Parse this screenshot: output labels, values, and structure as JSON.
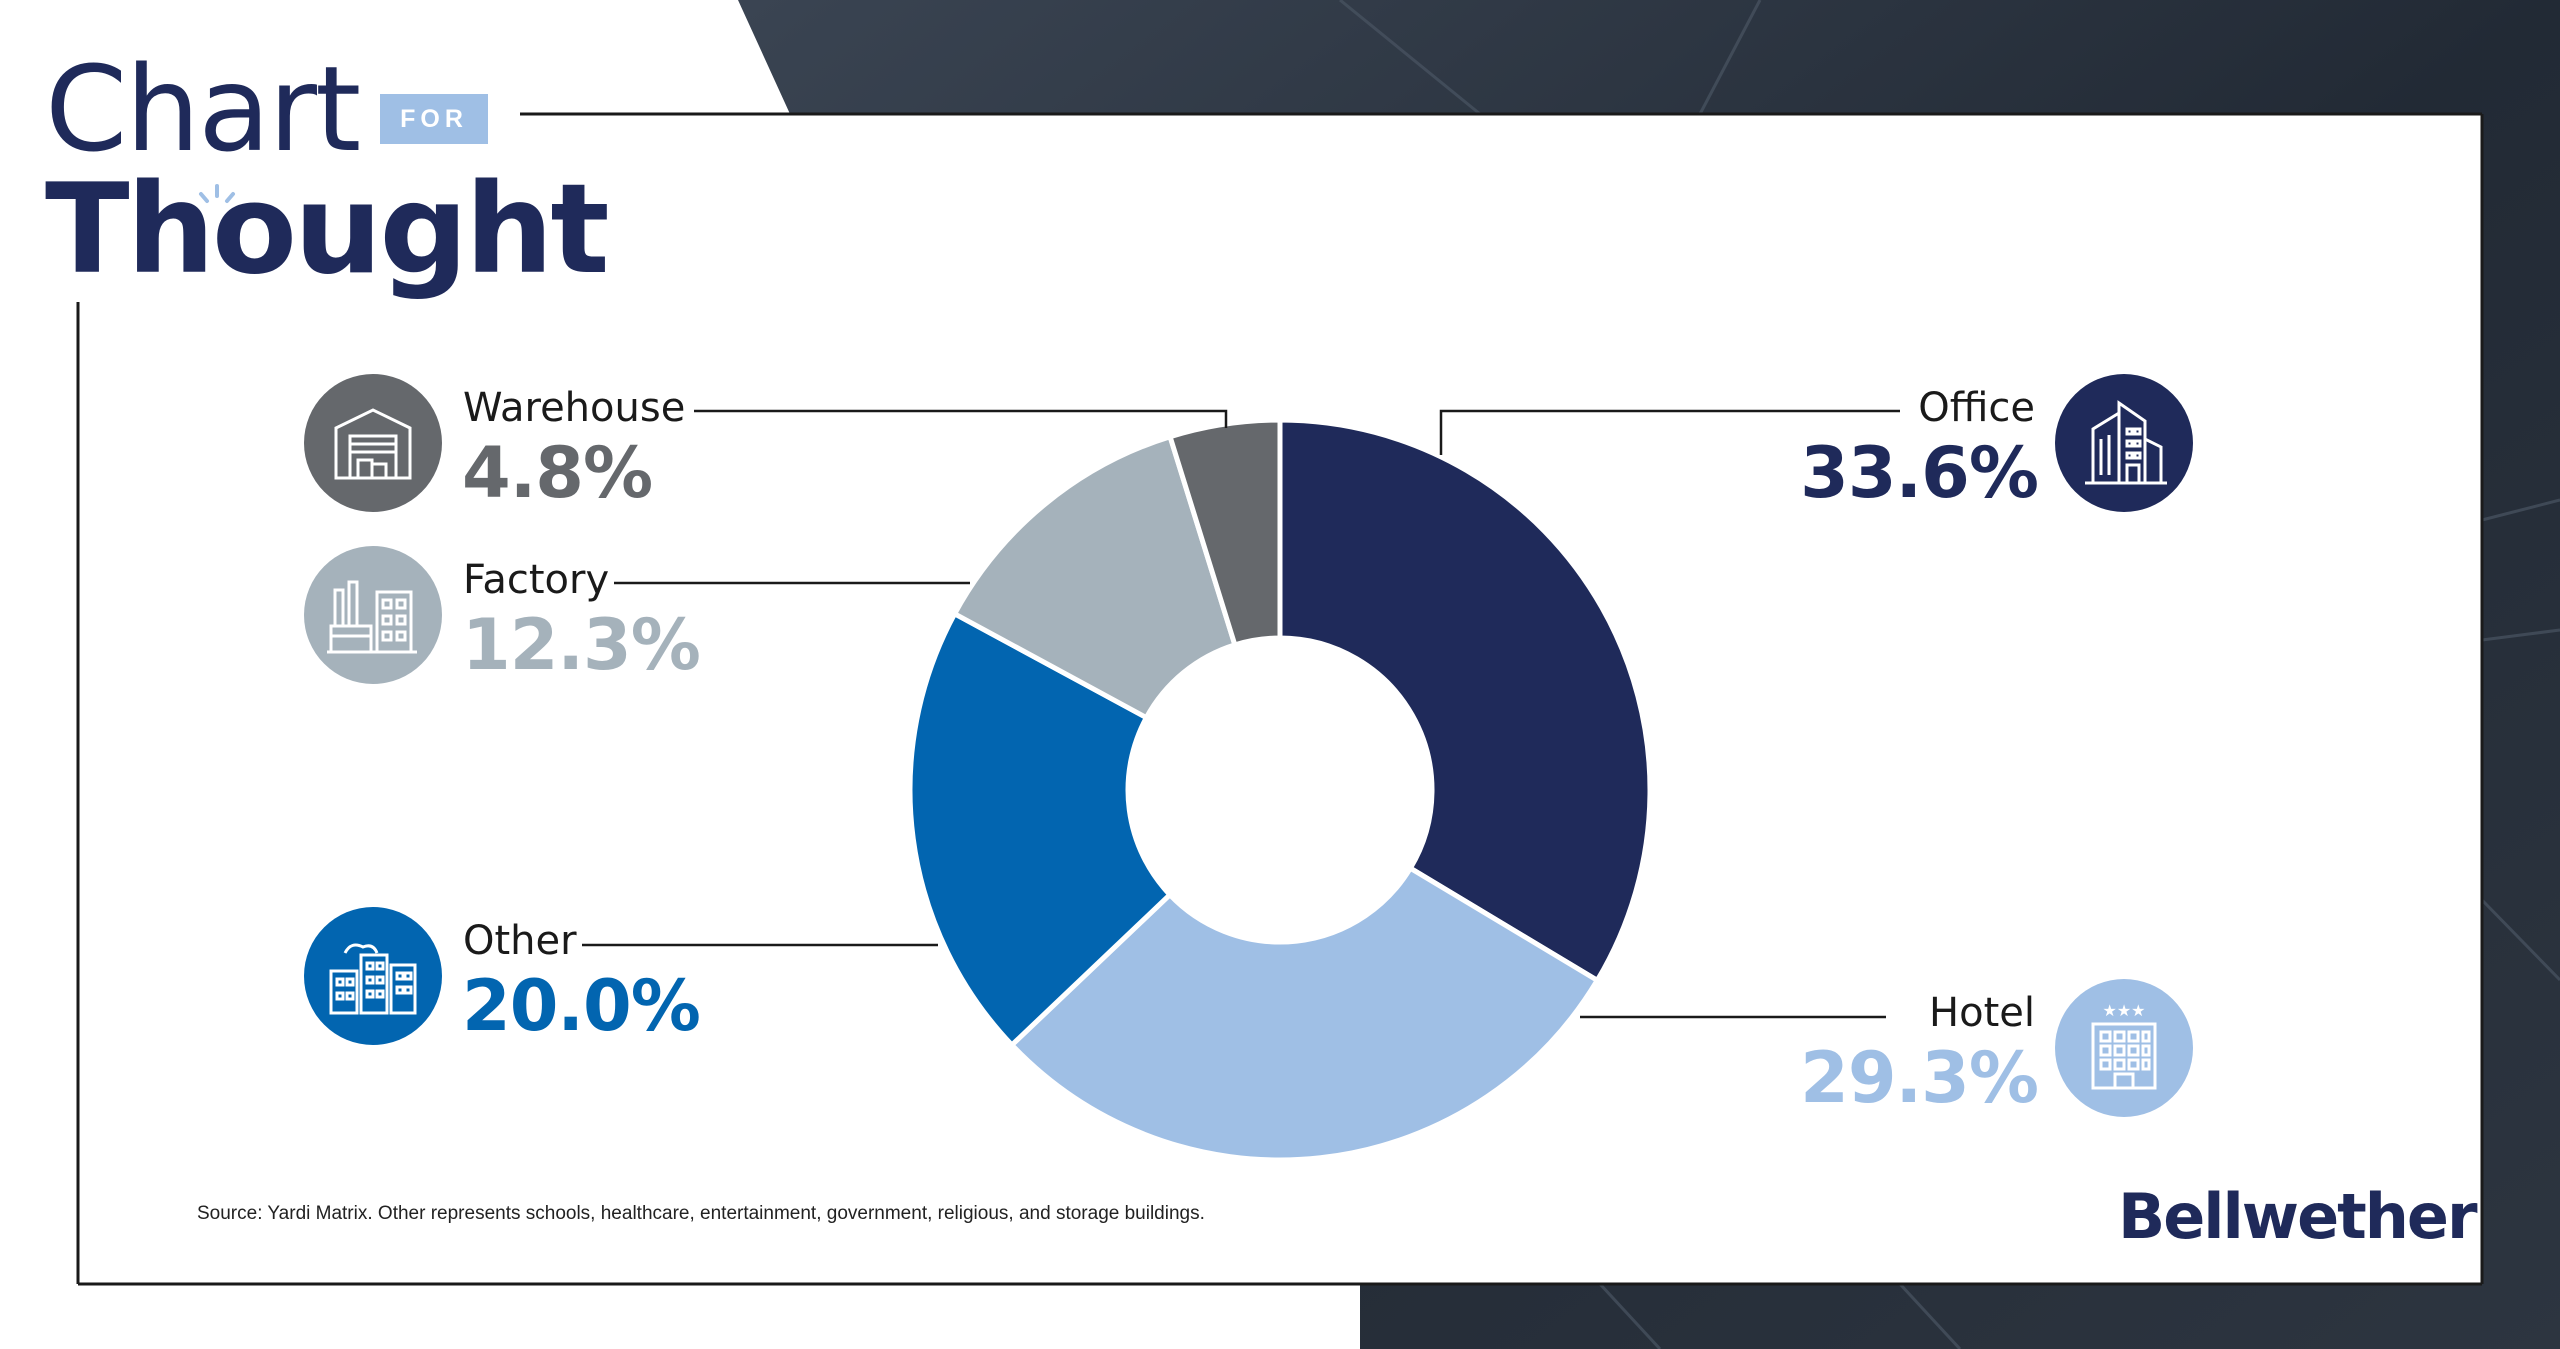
{
  "header": {
    "title_line1": "Chart",
    "title_tag": "FOR",
    "title_line2": "Thought"
  },
  "colors": {
    "office": "#1f2a5a",
    "hotel": "#9fbfe5",
    "other": "#0265b0",
    "factory": "#a5b2bb",
    "warehouse": "#65686c",
    "navy": "#1f2a5a"
  },
  "icons": {
    "office": "office-building-icon",
    "hotel": "hotel-building-icon",
    "other": "city-buildings-icon",
    "factory": "factory-icon",
    "warehouse": "warehouse-icon"
  },
  "chart_data": {
    "type": "pie",
    "categories": [
      "Office",
      "Hotel",
      "Other",
      "Factory",
      "Warehouse"
    ],
    "values": [
      33.6,
      29.3,
      20.0,
      12.3,
      4.8
    ],
    "value_labels": [
      "33.6%",
      "29.3%",
      "20.0%",
      "12.3%",
      "4.8%"
    ],
    "colors": [
      "#1f2a5a",
      "#9fbfe5",
      "#0265b0",
      "#a5b2bb",
      "#65686c"
    ],
    "unit": "%",
    "hole": "donut"
  },
  "footer": {
    "source": "Source: Yardi Matrix. Other represents schools, healthcare, entertainment, government, religious, and storage buildings.",
    "logo": "Bellwether"
  }
}
